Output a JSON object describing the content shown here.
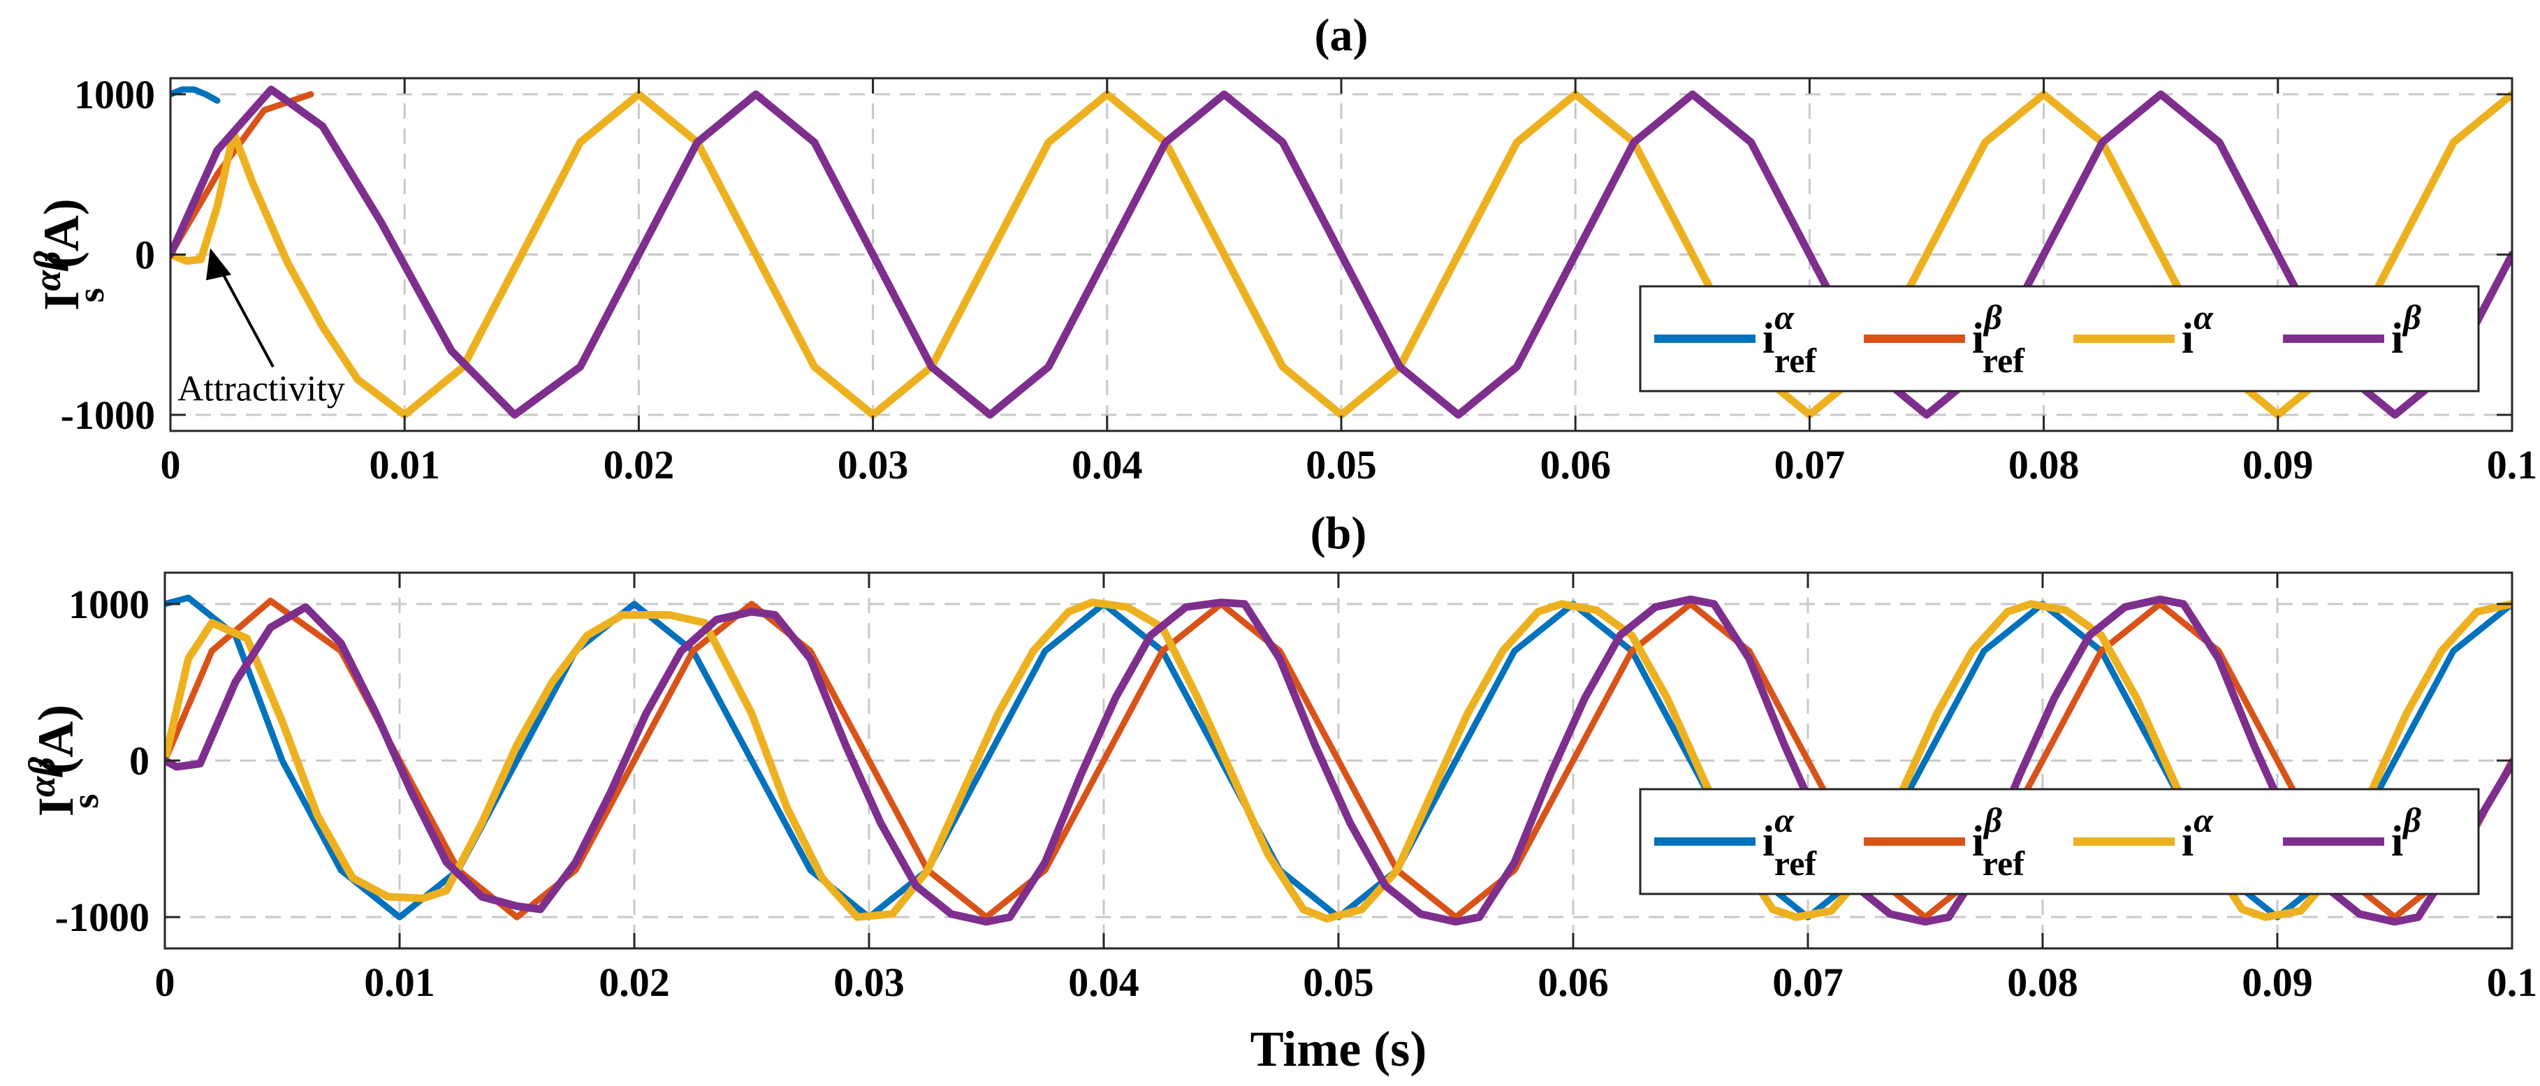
{
  "colors": {
    "i_ref_alpha": "#0072BD",
    "i_ref_beta": "#D95319",
    "i_alpha": "#EDB120",
    "i_beta": "#7E2F8E",
    "grid": "#c8c8c8",
    "axis": "#262626"
  },
  "figure": {
    "xlabel": "Time (s)"
  },
  "chart_data": [
    {
      "type": "line",
      "title": "(a)",
      "xlabel": "",
      "ylabel_main": "I",
      "ylabel_sup": "αβ",
      "ylabel_sub": "s",
      "ylabel_unit": "(A)",
      "xlim": [
        0,
        0.1
      ],
      "ylim": [
        -1100,
        1100
      ],
      "xticks": [
        0,
        0.01,
        0.02,
        0.03,
        0.04,
        0.05,
        0.06,
        0.07,
        0.08,
        0.09,
        0.1
      ],
      "xtick_labels": [
        "0",
        "0.01",
        "0.02",
        "0.03",
        "0.04",
        "0.05",
        "0.06",
        "0.07",
        "0.08",
        "0.09",
        "0.1"
      ],
      "yticks": [
        -1000,
        0,
        1000
      ],
      "ytick_labels": [
        "-1000",
        "0",
        "1000"
      ],
      "grid": true,
      "legend_position": "lower-right",
      "annotation": {
        "text": "Attractivity",
        "x": 0.0017,
        "y": 40
      },
      "series": [
        {
          "name": "i_ref_alpha",
          "legend_main": "i",
          "legend_sup": "α",
          "legend_sub": "ref",
          "x": [
            0,
            0.0005,
            0.001,
            0.0015,
            0.002
          ],
          "y": [
            1000,
            1030,
            1030,
            1000,
            960
          ]
        },
        {
          "name": "i_ref_beta",
          "legend_main": "i",
          "legend_sup": "β",
          "legend_sub": "ref",
          "x": [
            0,
            0.002,
            0.004,
            0.006
          ],
          "y": [
            0,
            500,
            900,
            1000
          ]
        },
        {
          "name": "i_alpha",
          "legend_main": "i",
          "legend_sup": "α",
          "legend_sub": "",
          "x": [
            0,
            0.0007,
            0.0013,
            0.002,
            0.0027,
            0.0035,
            0.005,
            0.0065,
            0.008,
            0.01,
            0.0125,
            0.015,
            0.0175,
            0.02,
            0.0225,
            0.025,
            0.0275,
            0.03,
            0.0325,
            0.035,
            0.0375,
            0.04,
            0.0425,
            0.045,
            0.0475,
            0.05,
            0.0525,
            0.055,
            0.0575,
            0.06,
            0.0625,
            0.065,
            0.0675,
            0.07,
            0.0725,
            0.075,
            0.0775,
            0.08,
            0.0825,
            0.085,
            0.0875,
            0.09,
            0.0925,
            0.095,
            0.0975,
            0.1
          ],
          "y": [
            0,
            -40,
            -30,
            300,
            760,
            450,
            -50,
            -450,
            -780,
            -1000,
            -700,
            0,
            700,
            1000,
            700,
            0,
            -700,
            -1000,
            -700,
            0,
            700,
            1000,
            700,
            0,
            -700,
            -1000,
            -700,
            0,
            700,
            1000,
            700,
            0,
            -700,
            -1000,
            -700,
            0,
            700,
            1000,
            700,
            0,
            -700,
            -1000,
            -700,
            0,
            700,
            1000
          ]
        },
        {
          "name": "i_beta",
          "legend_main": "i",
          "legend_sup": "β",
          "legend_sub": "",
          "x": [
            0,
            0.002,
            0.0043,
            0.0065,
            0.009,
            0.012,
            0.0147,
            0.0175,
            0.02,
            0.0225,
            0.025,
            0.0275,
            0.03,
            0.0325,
            0.035,
            0.0375,
            0.04,
            0.0425,
            0.045,
            0.0475,
            0.05,
            0.0525,
            0.055,
            0.0575,
            0.06,
            0.0625,
            0.065,
            0.0675,
            0.07,
            0.0725,
            0.075,
            0.0775,
            0.08,
            0.0825,
            0.085,
            0.0875,
            0.09,
            0.0925,
            0.095,
            0.0975,
            0.1
          ],
          "y": [
            0,
            650,
            1030,
            800,
            200,
            -600,
            -1000,
            -700,
            0,
            700,
            1000,
            700,
            0,
            -700,
            -1000,
            -700,
            0,
            700,
            1000,
            700,
            0,
            -700,
            -1000,
            -700,
            0,
            700,
            1000,
            700,
            0,
            -700,
            -1000,
            -700,
            0,
            700,
            1000,
            700,
            0,
            -700,
            -1000,
            -700,
            0
          ]
        }
      ]
    },
    {
      "type": "line",
      "title": "(b)",
      "xlabel": "Time (s)",
      "ylabel_main": "I",
      "ylabel_sup": "αβ",
      "ylabel_sub": "s",
      "ylabel_unit": "(A)",
      "xlim": [
        0,
        0.1
      ],
      "ylim": [
        -1200,
        1200
      ],
      "xticks": [
        0,
        0.01,
        0.02,
        0.03,
        0.04,
        0.05,
        0.06,
        0.07,
        0.08,
        0.09,
        0.1
      ],
      "xtick_labels": [
        "0",
        "0.01",
        "0.02",
        "0.03",
        "0.04",
        "0.05",
        "0.06",
        "0.07",
        "0.08",
        "0.09",
        "0.1"
      ],
      "yticks": [
        -1000,
        0,
        1000
      ],
      "ytick_labels": [
        "-1000",
        "0",
        "1000"
      ],
      "grid": true,
      "legend_position": "lower-right",
      "series": [
        {
          "name": "i_ref_alpha",
          "legend_main": "i",
          "legend_sup": "α",
          "legend_sub": "ref",
          "x": [
            0,
            0.001,
            0.003,
            0.005,
            0.0075,
            0.01,
            0.0125,
            0.015,
            0.0175,
            0.02,
            0.0225,
            0.025,
            0.0275,
            0.03,
            0.0325,
            0.035,
            0.0375,
            0.04,
            0.0425,
            0.045,
            0.0475,
            0.05,
            0.0525,
            0.055,
            0.0575,
            0.06,
            0.0625,
            0.065,
            0.0675,
            0.07,
            0.0725,
            0.075,
            0.0775,
            0.08,
            0.0825,
            0.085,
            0.0875,
            0.09,
            0.0925,
            0.095,
            0.0975,
            0.1
          ],
          "y": [
            1000,
            1040,
            800,
            0,
            -700,
            -1000,
            -700,
            0,
            700,
            1000,
            700,
            0,
            -700,
            -1000,
            -700,
            0,
            700,
            1000,
            700,
            0,
            -700,
            -1000,
            -700,
            0,
            700,
            1000,
            700,
            0,
            -700,
            -1000,
            -700,
            0,
            700,
            1000,
            700,
            0,
            -700,
            -1000,
            -700,
            0,
            700,
            1000
          ]
        },
        {
          "name": "i_ref_beta",
          "legend_main": "i",
          "legend_sup": "β",
          "legend_sub": "ref",
          "x": [
            0,
            0.002,
            0.0045,
            0.0075,
            0.01,
            0.0125,
            0.015,
            0.0175,
            0.02,
            0.0225,
            0.025,
            0.0275,
            0.03,
            0.0325,
            0.035,
            0.0375,
            0.04,
            0.0425,
            0.045,
            0.0475,
            0.05,
            0.0525,
            0.055,
            0.0575,
            0.06,
            0.0625,
            0.065,
            0.0675,
            0.07,
            0.0725,
            0.075,
            0.0775,
            0.08,
            0.0825,
            0.085,
            0.0875,
            0.09,
            0.0925,
            0.095,
            0.0975,
            0.1
          ],
          "y": [
            0,
            700,
            1020,
            700,
            0,
            -700,
            -1000,
            -700,
            0,
            700,
            1000,
            700,
            0,
            -700,
            -1000,
            -700,
            0,
            700,
            1000,
            700,
            0,
            -700,
            -1000,
            -700,
            0,
            700,
            1000,
            700,
            0,
            -700,
            -1000,
            -700,
            0,
            700,
            1000,
            700,
            0,
            -700,
            -1000,
            -700,
            0
          ]
        },
        {
          "name": "i_alpha",
          "legend_main": "i",
          "legend_sup": "α",
          "legend_sub": "",
          "x": [
            0,
            0.001,
            0.002,
            0.0035,
            0.005,
            0.0065,
            0.008,
            0.0095,
            0.011,
            0.012,
            0.0135,
            0.015,
            0.0165,
            0.018,
            0.0195,
            0.0215,
            0.023,
            0.025,
            0.0265,
            0.028,
            0.0295,
            0.031,
            0.0325,
            0.034,
            0.0355,
            0.037,
            0.0385,
            0.0395,
            0.041,
            0.0425,
            0.044,
            0.0455,
            0.047,
            0.0485,
            0.0495,
            0.051,
            0.0525,
            0.054,
            0.0555,
            0.057,
            0.0585,
            0.0595,
            0.061,
            0.0625,
            0.064,
            0.0655,
            0.067,
            0.0685,
            0.0695,
            0.071,
            0.0725,
            0.074,
            0.0755,
            0.077,
            0.0785,
            0.0795,
            0.081,
            0.0825,
            0.084,
            0.0855,
            0.087,
            0.0885,
            0.0895,
            0.091,
            0.0925,
            0.094,
            0.0955,
            0.097,
            0.0985,
            0.1
          ],
          "y": [
            0,
            650,
            880,
            780,
            250,
            -350,
            -750,
            -870,
            -880,
            -830,
            -400,
            100,
            500,
            800,
            930,
            930,
            880,
            300,
            -300,
            -750,
            -1000,
            -980,
            -700,
            -200,
            300,
            700,
            950,
            1010,
            980,
            850,
            400,
            -100,
            -600,
            -950,
            -1010,
            -950,
            -700,
            -200,
            300,
            700,
            950,
            1000,
            960,
            800,
            400,
            -100,
            -600,
            -950,
            -1000,
            -960,
            -700,
            -200,
            300,
            700,
            950,
            1000,
            960,
            800,
            400,
            -100,
            -600,
            -950,
            -1000,
            -960,
            -700,
            -200,
            300,
            700,
            950,
            1000
          ]
        },
        {
          "name": "i_beta",
          "legend_main": "i",
          "legend_sup": "β",
          "legend_sub": "",
          "x": [
            0,
            0.0005,
            0.0015,
            0.003,
            0.0045,
            0.006,
            0.0075,
            0.009,
            0.0105,
            0.012,
            0.0135,
            0.015,
            0.016,
            0.0175,
            0.019,
            0.0205,
            0.022,
            0.0235,
            0.025,
            0.026,
            0.0275,
            0.029,
            0.0305,
            0.032,
            0.0335,
            0.035,
            0.036,
            0.0375,
            0.039,
            0.0405,
            0.042,
            0.0435,
            0.045,
            0.046,
            0.0475,
            0.049,
            0.0505,
            0.052,
            0.0535,
            0.055,
            0.056,
            0.0575,
            0.059,
            0.0605,
            0.062,
            0.0635,
            0.065,
            0.066,
            0.0675,
            0.069,
            0.0705,
            0.072,
            0.0735,
            0.075,
            0.076,
            0.0775,
            0.079,
            0.0805,
            0.082,
            0.0835,
            0.085,
            0.086,
            0.0875,
            0.089,
            0.0905,
            0.092,
            0.0935,
            0.095,
            0.096,
            0.0975,
            0.1
          ],
          "y": [
            0,
            -40,
            -20,
            500,
            850,
            980,
            750,
            300,
            -200,
            -650,
            -870,
            -930,
            -950,
            -650,
            -200,
            300,
            700,
            900,
            950,
            930,
            650,
            100,
            -400,
            -800,
            -980,
            -1030,
            -1000,
            -650,
            -100,
            400,
            800,
            980,
            1010,
            1000,
            650,
            100,
            -400,
            -800,
            -980,
            -1030,
            -1000,
            -650,
            -100,
            400,
            800,
            980,
            1030,
            1000,
            650,
            100,
            -400,
            -800,
            -980,
            -1030,
            -1000,
            -650,
            -100,
            400,
            800,
            980,
            1030,
            1000,
            650,
            100,
            -400,
            -800,
            -980,
            -1030,
            -1000,
            -650,
            -20
          ]
        }
      ]
    }
  ]
}
